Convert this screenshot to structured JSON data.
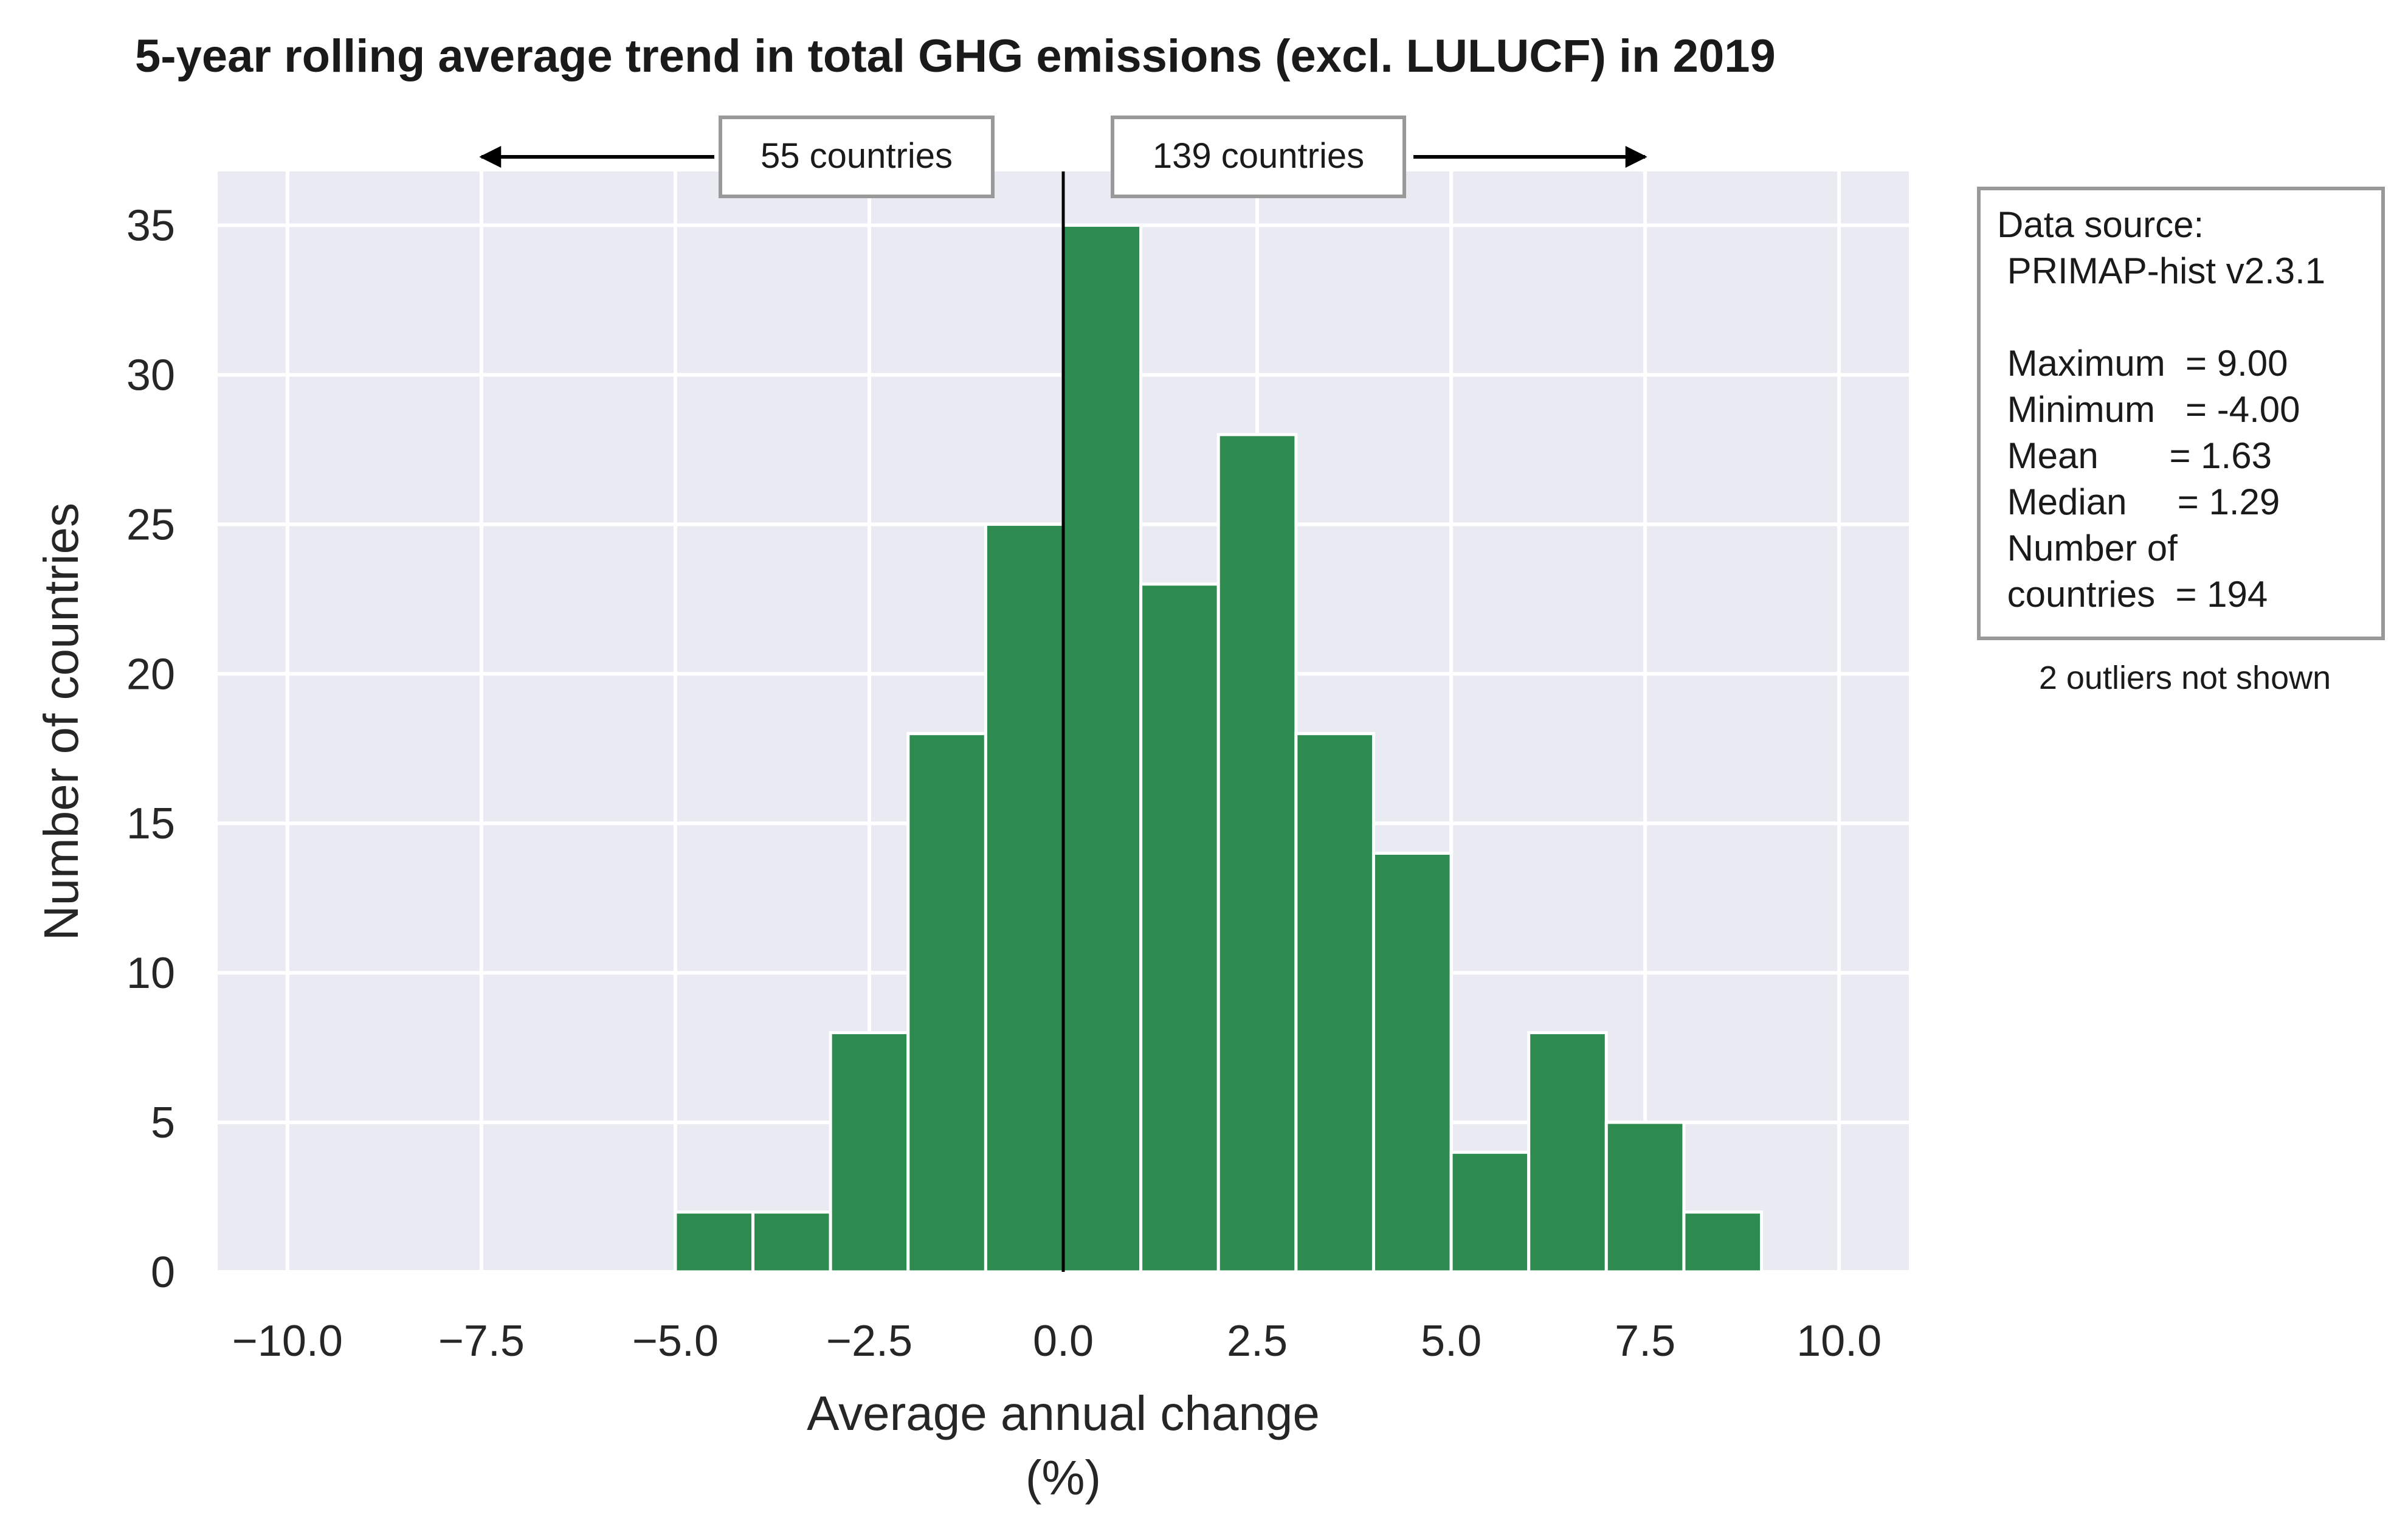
{
  "chart_data": {
    "type": "bar",
    "title": "5-year rolling average trend in total GHG emissions (excl. LULUCF) in 2019",
    "xlabel": [
      "Average annual change",
      "(%)"
    ],
    "ylabel": "Number of countries",
    "xlim": [
      -10.9,
      10.9
    ],
    "ylim": [
      0,
      36.8
    ],
    "x_ticks": [
      -10,
      -7.5,
      -5,
      -2.5,
      0,
      2.5,
      5,
      7.5,
      10
    ],
    "x_tick_labels": [
      "−10.0",
      "−7.5",
      "−5.0",
      "−2.5",
      "0.0",
      "2.5",
      "5.0",
      "7.5",
      "10.0"
    ],
    "y_ticks": [
      0,
      5,
      10,
      15,
      20,
      25,
      30,
      35
    ],
    "y_tick_labels": [
      "0",
      "5",
      "10",
      "15",
      "20",
      "25",
      "30",
      "35"
    ],
    "grid": true,
    "bar_color": "#2e8b50",
    "bins": [
      {
        "x0": -5.0,
        "x1": -4.0,
        "count": 2
      },
      {
        "x0": -4.0,
        "x1": -3.0,
        "count": 2
      },
      {
        "x0": -3.0,
        "x1": -2.0,
        "count": 8
      },
      {
        "x0": -2.0,
        "x1": -1.0,
        "count": 18
      },
      {
        "x0": -1.0,
        "x1": 0.0,
        "count": 25
      },
      {
        "x0": 0.0,
        "x1": 1.0,
        "count": 35
      },
      {
        "x0": 1.0,
        "x1": 2.0,
        "count": 23
      },
      {
        "x0": 2.0,
        "x1": 3.0,
        "count": 28
      },
      {
        "x0": 3.0,
        "x1": 4.0,
        "count": 18
      },
      {
        "x0": 4.0,
        "x1": 5.0,
        "count": 14
      },
      {
        "x0": 5.0,
        "x1": 6.0,
        "count": 4
      },
      {
        "x0": 6.0,
        "x1": 7.0,
        "count": 8
      },
      {
        "x0": 7.0,
        "x1": 8.0,
        "count": 5
      },
      {
        "x0": 8.0,
        "x1": 9.0,
        "count": 2
      }
    ],
    "zero_line": 0,
    "annotations": {
      "left_count": "55 countries",
      "right_count": "139 countries",
      "left_arrow_to": -7.5,
      "right_arrow_to": 7.5,
      "stats_box": [
        "Data source:",
        " PRIMAP-hist v2.3.1",
        "",
        " Maximum  = 9.00",
        " Minimum   = -4.00",
        " Mean       = 1.63",
        " Median     = 1.29",
        " Number of",
        " countries  = 194"
      ],
      "outliers_note": "2 outliers not shown"
    }
  }
}
